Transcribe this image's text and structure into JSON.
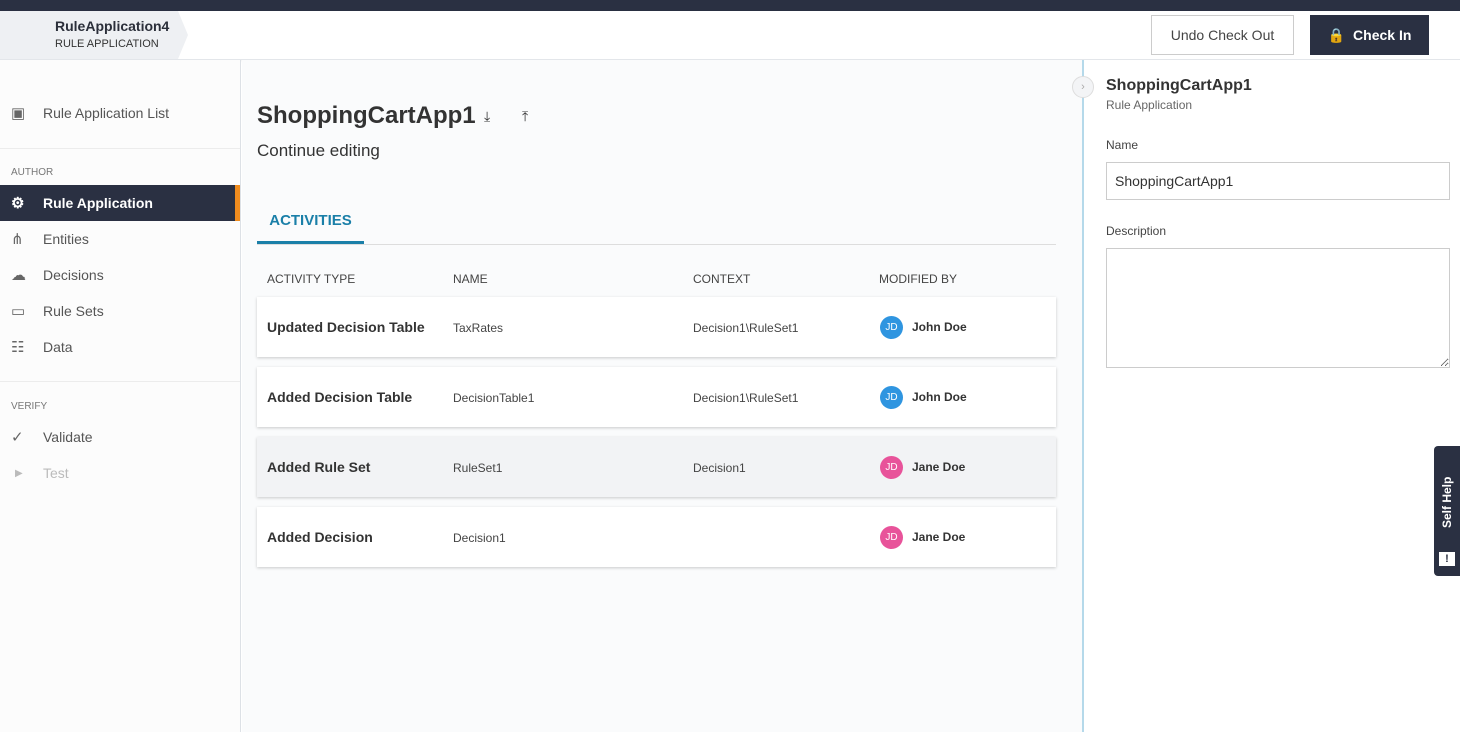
{
  "header": {
    "breadcrumb_title": "RuleApplication4",
    "breadcrumb_subtitle": "RULE APPLICATION",
    "undo_label": "Undo Check Out",
    "checkin_label": "Check In"
  },
  "sidebar": {
    "list_label": "Rule Application List",
    "author_label": "AUTHOR",
    "verify_label": "VERIFY",
    "items": [
      {
        "label": "Rule Application",
        "icon": "app-gear-icon"
      },
      {
        "label": "Entities",
        "icon": "hierarchy-icon"
      },
      {
        "label": "Decisions",
        "icon": "cloud-gear-icon"
      },
      {
        "label": "Rule Sets",
        "icon": "ruleset-icon"
      },
      {
        "label": "Data",
        "icon": "data-icon"
      }
    ],
    "verify_items": [
      {
        "label": "Validate",
        "icon": "check-icon"
      },
      {
        "label": "Test",
        "icon": "play-icon"
      }
    ]
  },
  "main": {
    "title": "ShoppingCartApp1",
    "subtitle": "Continue editing",
    "tab": "ACTIVITIES",
    "columns": [
      "ACTIVITY TYPE",
      "NAME",
      "CONTEXT",
      "MODIFIED BY"
    ],
    "rows": [
      {
        "type": "Updated Decision Table",
        "name": "TaxRates",
        "context": "Decision1\\RuleSet1",
        "initials": "JD",
        "by": "John Doe",
        "color": "#2f95e0"
      },
      {
        "type": "Added Decision Table",
        "name": "DecisionTable1",
        "context": "Decision1\\RuleSet1",
        "initials": "JD",
        "by": "John Doe",
        "color": "#2f95e0"
      },
      {
        "type": "Added Rule Set",
        "name": "RuleSet1",
        "context": "Decision1",
        "initials": "JD",
        "by": "Jane Doe",
        "color": "#e8539a"
      },
      {
        "type": "Added Decision",
        "name": "Decision1",
        "context": "",
        "initials": "JD",
        "by": "Jane Doe",
        "color": "#e8539a"
      }
    ]
  },
  "panel": {
    "title": "ShoppingCartApp1",
    "subtitle": "Rule Application",
    "name_label": "Name",
    "name_value": "ShoppingCartApp1",
    "description_label": "Description",
    "description_value": ""
  },
  "help": {
    "label": "Self Help"
  }
}
